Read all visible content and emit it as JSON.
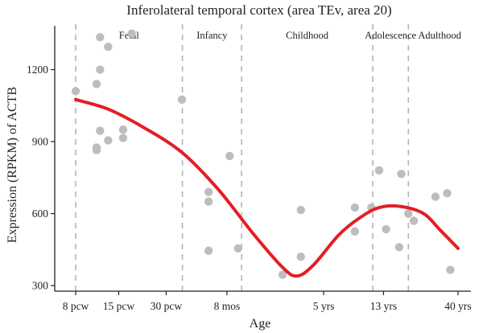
{
  "chart_data": {
    "type": "scatter",
    "title": "Inferolateral temporal cortex (area TEv, area 20)",
    "xlabel": "Age",
    "ylabel": "Expression (RPKM) of ACTB",
    "x_scale": "log(post-conception days)",
    "x_ticks": [
      {
        "label": "8 pcw",
        "age": "8 pcw"
      },
      {
        "label": "15 pcw",
        "age": "15 pcw"
      },
      {
        "label": "30 pcw",
        "age": "30 pcw"
      },
      {
        "label": "8 mos",
        "age": "8 mos"
      },
      {
        "label": "5 yrs",
        "age": "5 yrs"
      },
      {
        "label": "13 yrs",
        "age": "13 yrs"
      },
      {
        "label": "40 yrs",
        "age": "40 yrs"
      }
    ],
    "y_ticks": [
      300,
      600,
      900,
      1200
    ],
    "ylim": [
      290,
      1380
    ],
    "grid": false,
    "periods": [
      "Fetal",
      "Infancy",
      "Childhood",
      "Adolescence",
      "Adulthood"
    ],
    "period_boundaries": [
      "birth",
      "1 yr",
      "11 yrs",
      "19 yrs"
    ],
    "points": [
      {
        "age_pcd": 56,
        "y": 1110
      },
      {
        "age_pcd": 76,
        "y": 865
      },
      {
        "age_pcd": 76,
        "y": 875
      },
      {
        "age_pcd": 76,
        "y": 1140
      },
      {
        "age_pcd": 80,
        "y": 1335
      },
      {
        "age_pcd": 80,
        "y": 1200
      },
      {
        "age_pcd": 80,
        "y": 945
      },
      {
        "age_pcd": 90,
        "y": 1295
      },
      {
        "age_pcd": 90,
        "y": 905
      },
      {
        "age_pcd": 112,
        "y": 950
      },
      {
        "age_pcd": 112,
        "y": 915
      },
      {
        "age_pcd": 127,
        "y": 1350
      },
      {
        "age_pcd": 264,
        "y": 1075
      },
      {
        "age_pcd": 390,
        "y": 690
      },
      {
        "age_pcd": 390,
        "y": 650
      },
      {
        "age_pcd": 390,
        "y": 445
      },
      {
        "age_pcd": 530,
        "y": 840
      },
      {
        "age_pcd": 600,
        "y": 455
      },
      {
        "age_pcd": 1150,
        "y": 345
      },
      {
        "age_pcd": 1500,
        "y": 615
      },
      {
        "age_pcd": 1500,
        "y": 420
      },
      {
        "age_pcd": 3300,
        "y": 625
      },
      {
        "age_pcd": 3300,
        "y": 525
      },
      {
        "age_pcd": 4200,
        "y": 625
      },
      {
        "age_pcd": 4700,
        "y": 780
      },
      {
        "age_pcd": 5200,
        "y": 535
      },
      {
        "age_pcd": 6300,
        "y": 460
      },
      {
        "age_pcd": 6500,
        "y": 765
      },
      {
        "age_pcd": 7200,
        "y": 600
      },
      {
        "age_pcd": 7800,
        "y": 570
      },
      {
        "age_pcd": 10700,
        "y": 670
      },
      {
        "age_pcd": 12700,
        "y": 685
      },
      {
        "age_pcd": 13300,
        "y": 365
      }
    ],
    "trend": [
      {
        "age_pcd": 56,
        "y": 1075
      },
      {
        "age_pcd": 90,
        "y": 1035
      },
      {
        "age_pcd": 150,
        "y": 960
      },
      {
        "age_pcd": 264,
        "y": 855
      },
      {
        "age_pcd": 450,
        "y": 700
      },
      {
        "age_pcd": 750,
        "y": 515
      },
      {
        "age_pcd": 1150,
        "y": 375
      },
      {
        "age_pcd": 1420,
        "y": 340
      },
      {
        "age_pcd": 1800,
        "y": 385
      },
      {
        "age_pcd": 2600,
        "y": 510
      },
      {
        "age_pcd": 3500,
        "y": 580
      },
      {
        "age_pcd": 4700,
        "y": 625
      },
      {
        "age_pcd": 6400,
        "y": 630
      },
      {
        "age_pcd": 9000,
        "y": 600
      },
      {
        "age_pcd": 11500,
        "y": 530
      },
      {
        "age_pcd": 14880,
        "y": 455
      }
    ]
  }
}
